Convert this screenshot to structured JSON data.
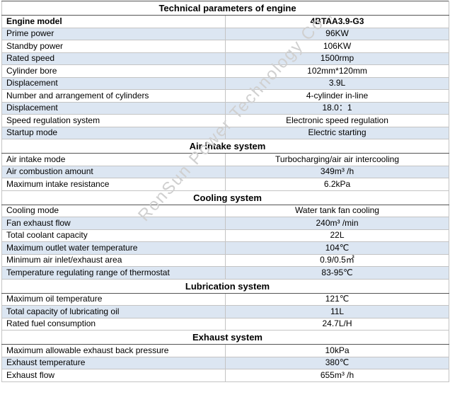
{
  "title": "Technical parameters of engine",
  "model": {
    "label": "Engine model",
    "value": "4BTAA3.9-G3"
  },
  "engine_rows": [
    {
      "label": "Prime power",
      "value": "96KW"
    },
    {
      "label": "Standby power",
      "value": "106KW"
    },
    {
      "label": "Rated speed",
      "value": "1500rmp"
    },
    {
      "label": "Cylinder bore",
      "value": "102mm*120mm"
    },
    {
      "label": "Displacement",
      "value": "3.9L"
    },
    {
      "label": "Number and arrangement of cylinders",
      "value": "4-cylinder in-line"
    },
    {
      "label": "Displacement",
      "value": "18.0：1"
    },
    {
      "label": "Speed regulation system",
      "value": "Electronic speed regulation"
    },
    {
      "label": "Startup mode",
      "value": "Electric starting"
    }
  ],
  "sections": [
    {
      "title": "Air intake system",
      "rows": [
        {
          "label": "Air intake mode",
          "value": "Turbocharging/air air intercooling"
        },
        {
          "label": "Air combustion amount",
          "value": "349m³ /h"
        },
        {
          "label": "Maximum intake resistance",
          "value": "6.2kPa"
        }
      ]
    },
    {
      "title": "Cooling system",
      "rows": [
        {
          "label": "Cooling mode",
          "value": "Water tank fan cooling"
        },
        {
          "label": "Fan exhaust flow",
          "value": "240m³  /min"
        },
        {
          "label": "Total coolant capacity",
          "value": "22L"
        },
        {
          "label": "Maximum outlet water temperature",
          "value": "104℃"
        },
        {
          "label": "Minimum air inlet/exhaust area",
          "value": "0.9/0.5㎡"
        },
        {
          "label": "Temperature regulating range of thermostat",
          "value": "83-95℃"
        }
      ]
    },
    {
      "title": "Lubrication system",
      "rows": [
        {
          "label": "Maximum oil temperature",
          "value": "121℃"
        },
        {
          "label": "Total capacity of lubricating oil",
          "value": "11L"
        },
        {
          "label": "Rated fuel consumption",
          "value": "24.7L/H"
        }
      ]
    },
    {
      "title": "Exhaust system",
      "rows": [
        {
          "label": "Maximum allowable exhaust back pressure",
          "value": "10kPa"
        },
        {
          "label": "Exhaust temperature",
          "value": "380℃"
        },
        {
          "label": "Exhaust flow",
          "value": "655m³ /h"
        }
      ]
    }
  ],
  "watermark": "RonSun Power Technology Co.,",
  "colors": {
    "shade": "#dce6f2",
    "border": "#c4c4c4"
  }
}
